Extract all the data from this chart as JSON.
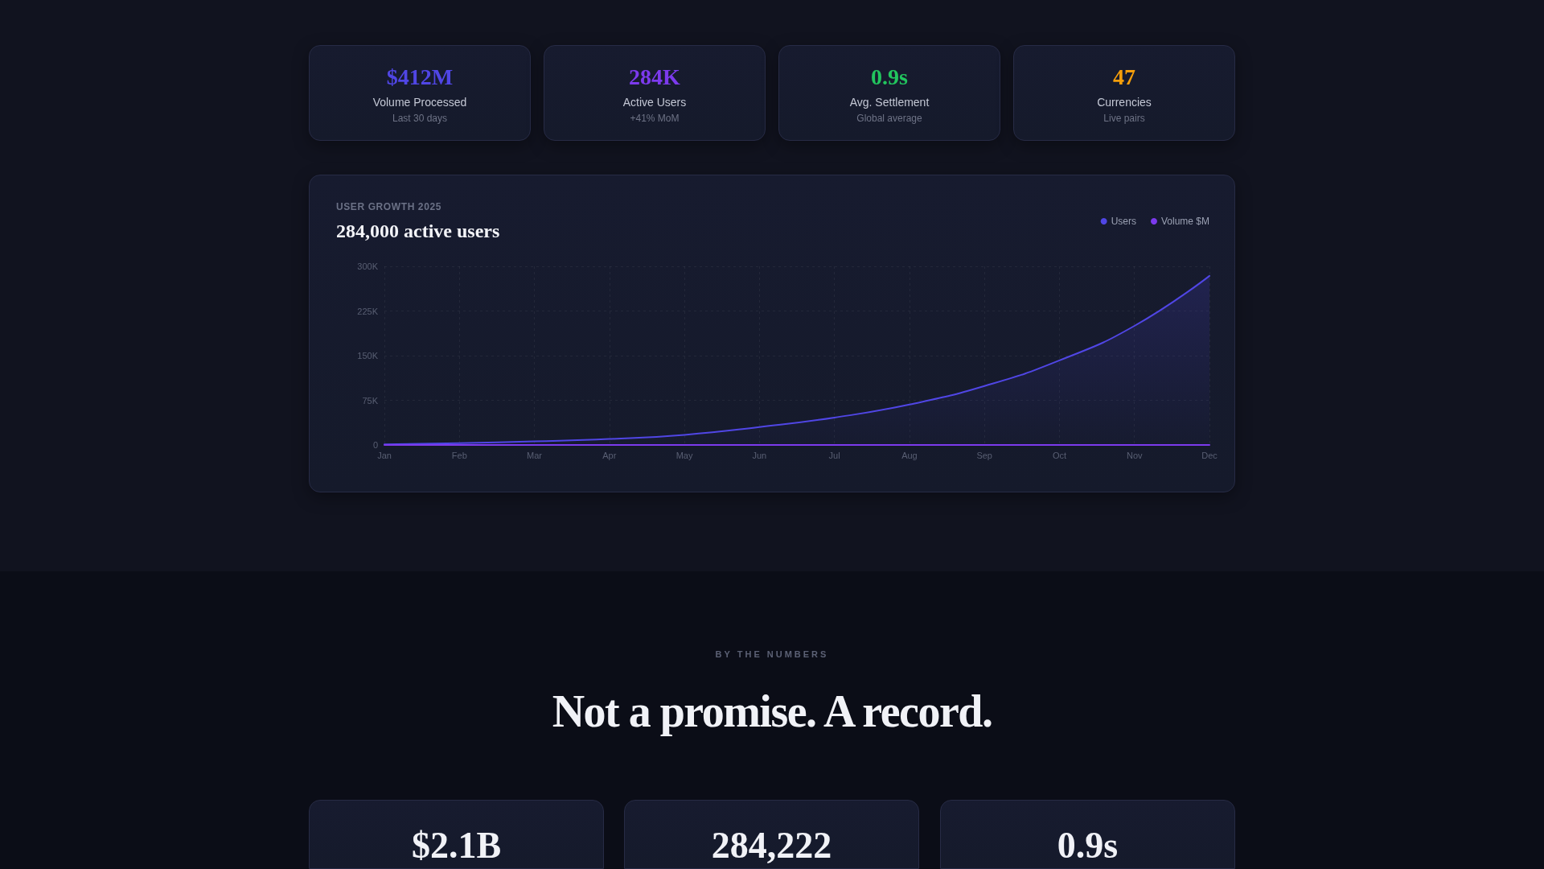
{
  "chart_data": [
    {
      "type": "other",
      "title": "$412M",
      "subtitle": "Volume Processed",
      "annotations": [
        "Last 30 days"
      ],
      "color": "#5046e5"
    },
    {
      "type": "other",
      "title": "284K",
      "subtitle": "Active Users",
      "annotations": [
        "+41% MoM"
      ],
      "color": "#7c3aed"
    },
    {
      "type": "other",
      "title": "0.9s",
      "subtitle": "Avg. Settlement",
      "annotations": [
        "Global average"
      ],
      "color": "#22c55e"
    },
    {
      "type": "other",
      "title": "47",
      "subtitle": "Currencies",
      "annotations": [
        "Live pairs"
      ],
      "color": "#f59e0b"
    },
    {
      "type": "line",
      "title": "284,000 active users",
      "subtitle": "USER GROWTH 2025",
      "categories": [
        "Jan",
        "Feb",
        "Mar",
        "Apr",
        "May",
        "Jun",
        "Jul",
        "Aug",
        "Sep",
        "Oct",
        "Nov",
        "Dec"
      ],
      "series": [
        {
          "name": "Users",
          "type": "area",
          "color": "#5046e5",
          "values": [
            1000,
            3000,
            6000,
            10000,
            17000,
            30000,
            46000,
            68000,
            99000,
            142000,
            200000,
            284000
          ]
        },
        {
          "name": "Volume $M",
          "type": "line",
          "color": "#7c3aed",
          "values": [
            0,
            0,
            0,
            0,
            0,
            0,
            0,
            0,
            0,
            0,
            0,
            0
          ]
        }
      ],
      "ylim": [
        0,
        300000
      ],
      "yticks": [
        0,
        {
          "value": 75000,
          "label": "75K"
        },
        {
          "value": 150000,
          "label": "150K"
        },
        {
          "value": 225000,
          "label": "225K"
        },
        {
          "value": 300000,
          "label": "300K"
        }
      ],
      "grid": true,
      "legend": "top right",
      "marker": "none",
      "line_style": "solid"
    },
    {
      "type": "other",
      "title": "Not a promise. A record.",
      "subtitle": "BY THE NUMBERS"
    },
    {
      "type": "other",
      "title": "$2.1B"
    },
    {
      "type": "other",
      "title": "284,222"
    },
    {
      "type": "other",
      "title": "0.9s"
    }
  ]
}
